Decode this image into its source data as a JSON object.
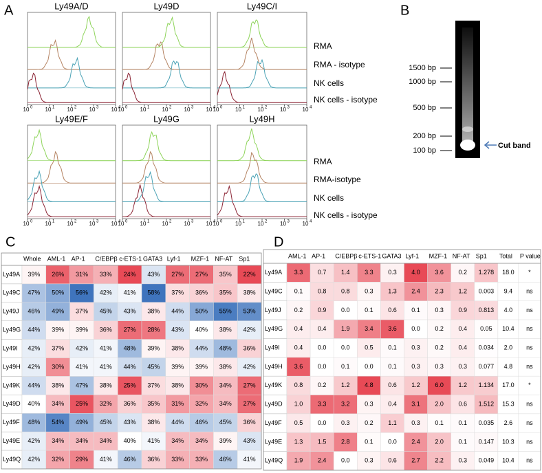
{
  "panel_a": {
    "label": "A",
    "plots": [
      {
        "title": "Ly49A/D"
      },
      {
        "title": "Ly49D"
      },
      {
        "title": "Ly49C/I"
      },
      {
        "title": "Ly49E/F"
      },
      {
        "title": "Ly49G"
      },
      {
        "title": "Ly49H"
      }
    ],
    "legend_top": [
      "RMA",
      "RMA - isotype",
      "NK cells",
      "NK cells - isotype"
    ],
    "legend_bottom": [
      "RMA",
      "RMA-isotype",
      "NK cells",
      "NK cells - isotype"
    ],
    "x_ticks": [
      {
        "base": "10",
        "exp": "0"
      },
      {
        "base": "10",
        "exp": "1"
      },
      {
        "base": "10",
        "exp": "2"
      },
      {
        "base": "10",
        "exp": "3"
      },
      {
        "base": "10",
        "exp": "4"
      }
    ]
  },
  "panel_b": {
    "label": "B",
    "markers": [
      "1500 bp",
      "1000 bp",
      "500 bp",
      "200 bp",
      "100 bp"
    ],
    "arrow_label": "Cut band"
  },
  "panel_c": {
    "label": "C",
    "columns": [
      "Whole",
      "AML-1",
      "AP-1",
      "C/EBPβ",
      "c-ETS-1",
      "GATA3",
      "Lyf-1",
      "MZF-1",
      "NF-AT",
      "Sp1"
    ],
    "rows": [
      {
        "name": "Ly49A",
        "cells": [
          "39%",
          "26%",
          "31%",
          "33%",
          "24%",
          "43%",
          "27%",
          "27%",
          "35%",
          "22%"
        ]
      },
      {
        "name": "Ly49C",
        "cells": [
          "47%",
          "50%",
          "56%",
          "42%",
          "41%",
          "58%",
          "37%",
          "36%",
          "35%",
          "38%"
        ]
      },
      {
        "name": "Ly49J",
        "cells": [
          "46%",
          "49%",
          "37%",
          "45%",
          "43%",
          "38%",
          "44%",
          "50%",
          "55%",
          "53%"
        ]
      },
      {
        "name": "Ly49G",
        "cells": [
          "44%",
          "39%",
          "39%",
          "36%",
          "27%",
          "28%",
          "43%",
          "40%",
          "38%",
          "42%"
        ]
      },
      {
        "name": "Ly49I",
        "cells": [
          "42%",
          "37%",
          "42%",
          "41%",
          "48%",
          "39%",
          "38%",
          "44%",
          "48%",
          "36%"
        ]
      },
      {
        "name": "Ly49H",
        "cells": [
          "42%",
          "30%",
          "41%",
          "41%",
          "44%",
          "45%",
          "39%",
          "39%",
          "38%",
          "42%"
        ]
      },
      {
        "name": "Ly49K",
        "cells": [
          "44%",
          "38%",
          "47%",
          "38%",
          "25%",
          "37%",
          "38%",
          "30%",
          "34%",
          "27%"
        ]
      },
      {
        "name": "Ly49D",
        "cells": [
          "40%",
          "34%",
          "25%",
          "32%",
          "36%",
          "35%",
          "31%",
          "32%",
          "34%",
          "27%"
        ]
      },
      {
        "name": "Ly49F",
        "cells": [
          "48%",
          "54%",
          "49%",
          "45%",
          "43%",
          "38%",
          "44%",
          "46%",
          "45%",
          "36%"
        ]
      },
      {
        "name": "Ly49E",
        "cells": [
          "42%",
          "34%",
          "34%",
          "34%",
          "40%",
          "41%",
          "34%",
          "34%",
          "39%",
          "43%"
        ]
      },
      {
        "name": "Ly49Q",
        "cells": [
          "42%",
          "32%",
          "29%",
          "41%",
          "46%",
          "36%",
          "33%",
          "33%",
          "46%",
          "41%"
        ]
      }
    ]
  },
  "panel_d": {
    "label": "D",
    "columns": [
      "AML-1",
      "AP-1",
      "C/EBPβ",
      "c-ETS-1",
      "GATA3",
      "Lyf-1",
      "MZF-1",
      "NF-AT",
      "Sp1",
      "Total",
      "P value"
    ],
    "rows": [
      {
        "name": "Ly49A",
        "cells": [
          "3.3",
          "0.7",
          "1.4",
          "3.3",
          "0.3",
          "4.0",
          "3.6",
          "0.2",
          "1.278",
          "18.0",
          "*"
        ]
      },
      {
        "name": "Ly49C",
        "cells": [
          "0.1",
          "0.8",
          "0.8",
          "0.3",
          "1.3",
          "2.4",
          "2.3",
          "1.2",
          "0.003",
          "9.4",
          "ns"
        ]
      },
      {
        "name": "Ly49J",
        "cells": [
          "0.2",
          "0.9",
          "0.0",
          "0.1",
          "0.6",
          "0.1",
          "0.3",
          "0.9",
          "0.813",
          "4.0",
          "ns"
        ]
      },
      {
        "name": "Ly49G",
        "cells": [
          "0.4",
          "0.4",
          "1.9",
          "3.4",
          "3.6",
          "0.0",
          "0.2",
          "0.4",
          "0.05",
          "10.4",
          "ns"
        ]
      },
      {
        "name": "Ly49I",
        "cells": [
          "0.4",
          "0.0",
          "0.0",
          "0.5",
          "0.1",
          "0.3",
          "0.2",
          "0.4",
          "0.034",
          "2.0",
          "ns"
        ]
      },
      {
        "name": "Ly49H",
        "cells": [
          "3.6",
          "0.0",
          "0.1",
          "0.0",
          "0.1",
          "0.3",
          "0.3",
          "0.3",
          "0.077",
          "4.8",
          "ns"
        ]
      },
      {
        "name": "Ly49K",
        "cells": [
          "0.8",
          "0.2",
          "1.2",
          "4.8",
          "0.6",
          "1.2",
          "6.0",
          "1.2",
          "1.134",
          "17.0",
          "*"
        ]
      },
      {
        "name": "Ly49D",
        "cells": [
          "1.0",
          "3.3",
          "3.2",
          "0.3",
          "0.4",
          "3.1",
          "2.0",
          "0.6",
          "1.512",
          "15.3",
          "ns"
        ]
      },
      {
        "name": "Ly49F",
        "cells": [
          "0.5",
          "0.0",
          "0.3",
          "0.2",
          "1.1",
          "0.3",
          "0.1",
          "0.1",
          "0.035",
          "2.6",
          "ns"
        ]
      },
      {
        "name": "Ly49E",
        "cells": [
          "1.3",
          "1.5",
          "2.8",
          "0.1",
          "0.0",
          "2.4",
          "2.0",
          "0.1",
          "0.147",
          "10.3",
          "ns"
        ]
      },
      {
        "name": "Ly49Q",
        "cells": [
          "1.9",
          "2.4",
          "0.0",
          "0.3",
          "0.6",
          "2.7",
          "2.2",
          "0.3",
          "0.049",
          "10.4",
          "ns"
        ]
      }
    ]
  }
}
